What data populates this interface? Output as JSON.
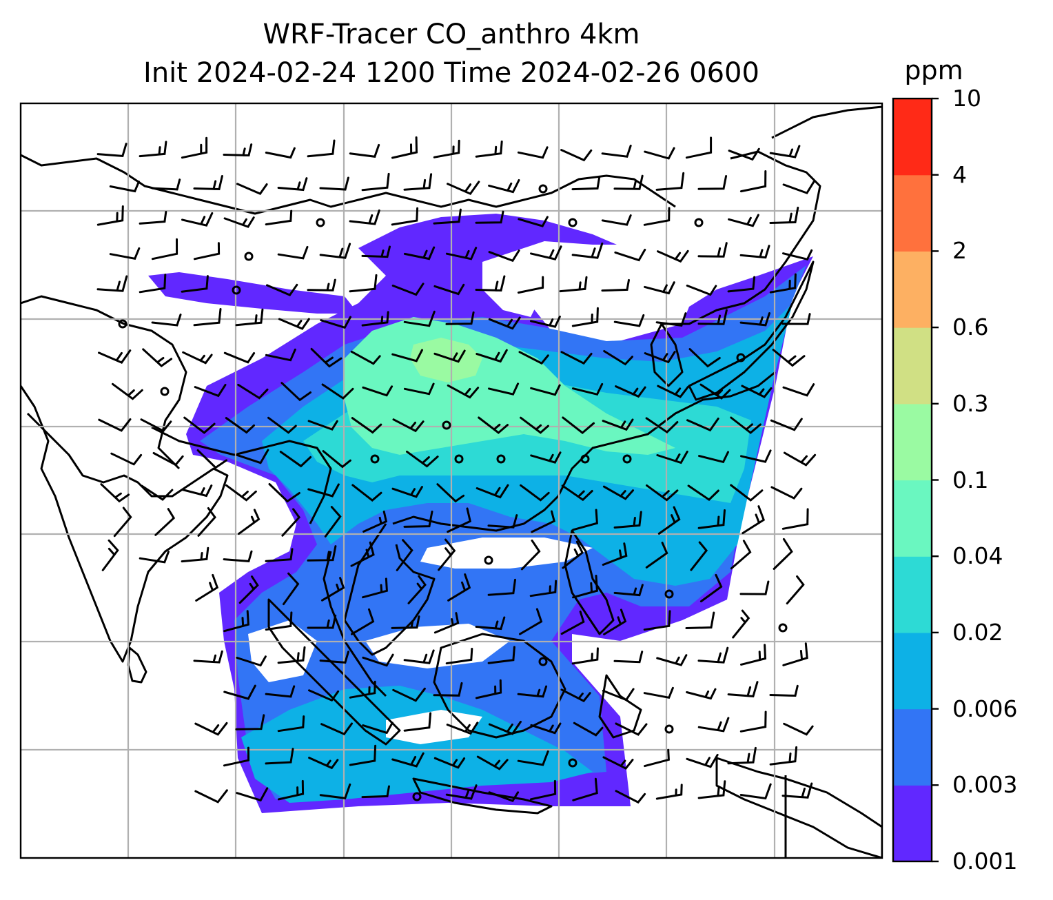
{
  "chart_data": {
    "type": "heatmap",
    "title_line1": "WRF-Tracer CO_anthro 4km",
    "title_line2": "Init 2024-02-24 1200 Time 2024-02-26 0600",
    "grid": true,
    "overlay": "wind barbs",
    "colorbar": {
      "unit": "ppm",
      "levels": [
        "0.001",
        "0.003",
        "0.006",
        "0.02",
        "0.04",
        "0.1",
        "0.3",
        "0.6",
        "2",
        "4",
        "10"
      ],
      "colors": [
        "#6128ff",
        "#3275f5",
        "#0db1e6",
        "#2ddad5",
        "#6af7c0",
        "#9afaa2",
        "#d0e084",
        "#fdb062",
        "#ff713d",
        "#ff2a17"
      ]
    }
  }
}
